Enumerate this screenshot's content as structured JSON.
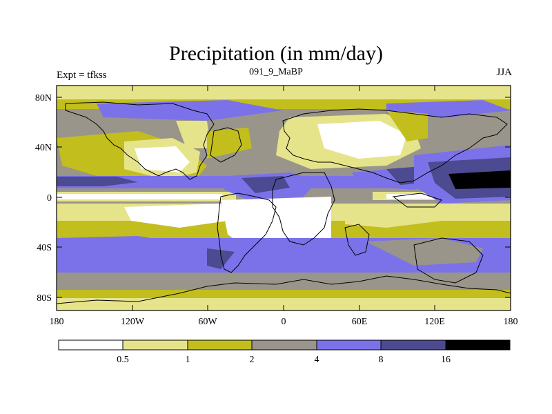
{
  "title": "Precipitation (in mm/day)",
  "left_label": "Expt = tfkss",
  "center_label": "091_9_MaBP",
  "right_label": "JJA",
  "lat_ticks": [
    "80N",
    "40N",
    "0",
    "40S",
    "80S"
  ],
  "lon_ticks": [
    "180",
    "120W",
    "60W",
    "0",
    "60E",
    "120E",
    "180"
  ],
  "colorbar": {
    "labels": [
      "0.5",
      "1",
      "2",
      "4",
      "8",
      "16"
    ],
    "colors": [
      "#ffffff",
      "#e6e48a",
      "#c2be1e",
      "#99958a",
      "#7b72ea",
      "#4c4a90",
      "#000000"
    ]
  },
  "colors": {
    "white": "#ffffff",
    "light_yellow": "#e6e48a",
    "olive": "#c2be1e",
    "gray": "#99958a",
    "blue": "#7b72ea",
    "dark_blue": "#4c4a90",
    "black": "#000000"
  }
}
